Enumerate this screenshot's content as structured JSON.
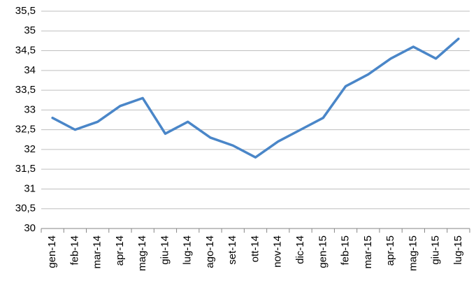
{
  "chart_data": {
    "type": "line",
    "categories": [
      "gen-14",
      "feb-14",
      "mar-14",
      "apr-14",
      "mag-14",
      "giu-14",
      "lug-14",
      "ago-14",
      "set-14",
      "ott-14",
      "nov-14",
      "dic-14",
      "gen-15",
      "feb-15",
      "mar-15",
      "apr-15",
      "mag-15",
      "giu-15",
      "lug-15"
    ],
    "values": [
      32.8,
      32.5,
      32.7,
      33.1,
      33.3,
      32.4,
      32.7,
      32.3,
      32.1,
      31.8,
      32.2,
      32.5,
      32.8,
      33.6,
      33.9,
      34.3,
      34.6,
      34.3,
      34.8
    ],
    "color": "#4a86c8",
    "ylim": [
      30,
      35.5
    ],
    "yticks": [
      30,
      {
        "value": 30.5,
        "label": "30,5"
      },
      31,
      {
        "value": 31.5,
        "label": "31,5"
      },
      32,
      {
        "value": 32.5,
        "label": "32,5"
      },
      33,
      {
        "value": 33.5,
        "label": "33,5"
      },
      34,
      {
        "value": 34.5,
        "label": "34,5"
      },
      35,
      {
        "value": 35.5,
        "label": "35,5"
      }
    ],
    "grid": true
  }
}
